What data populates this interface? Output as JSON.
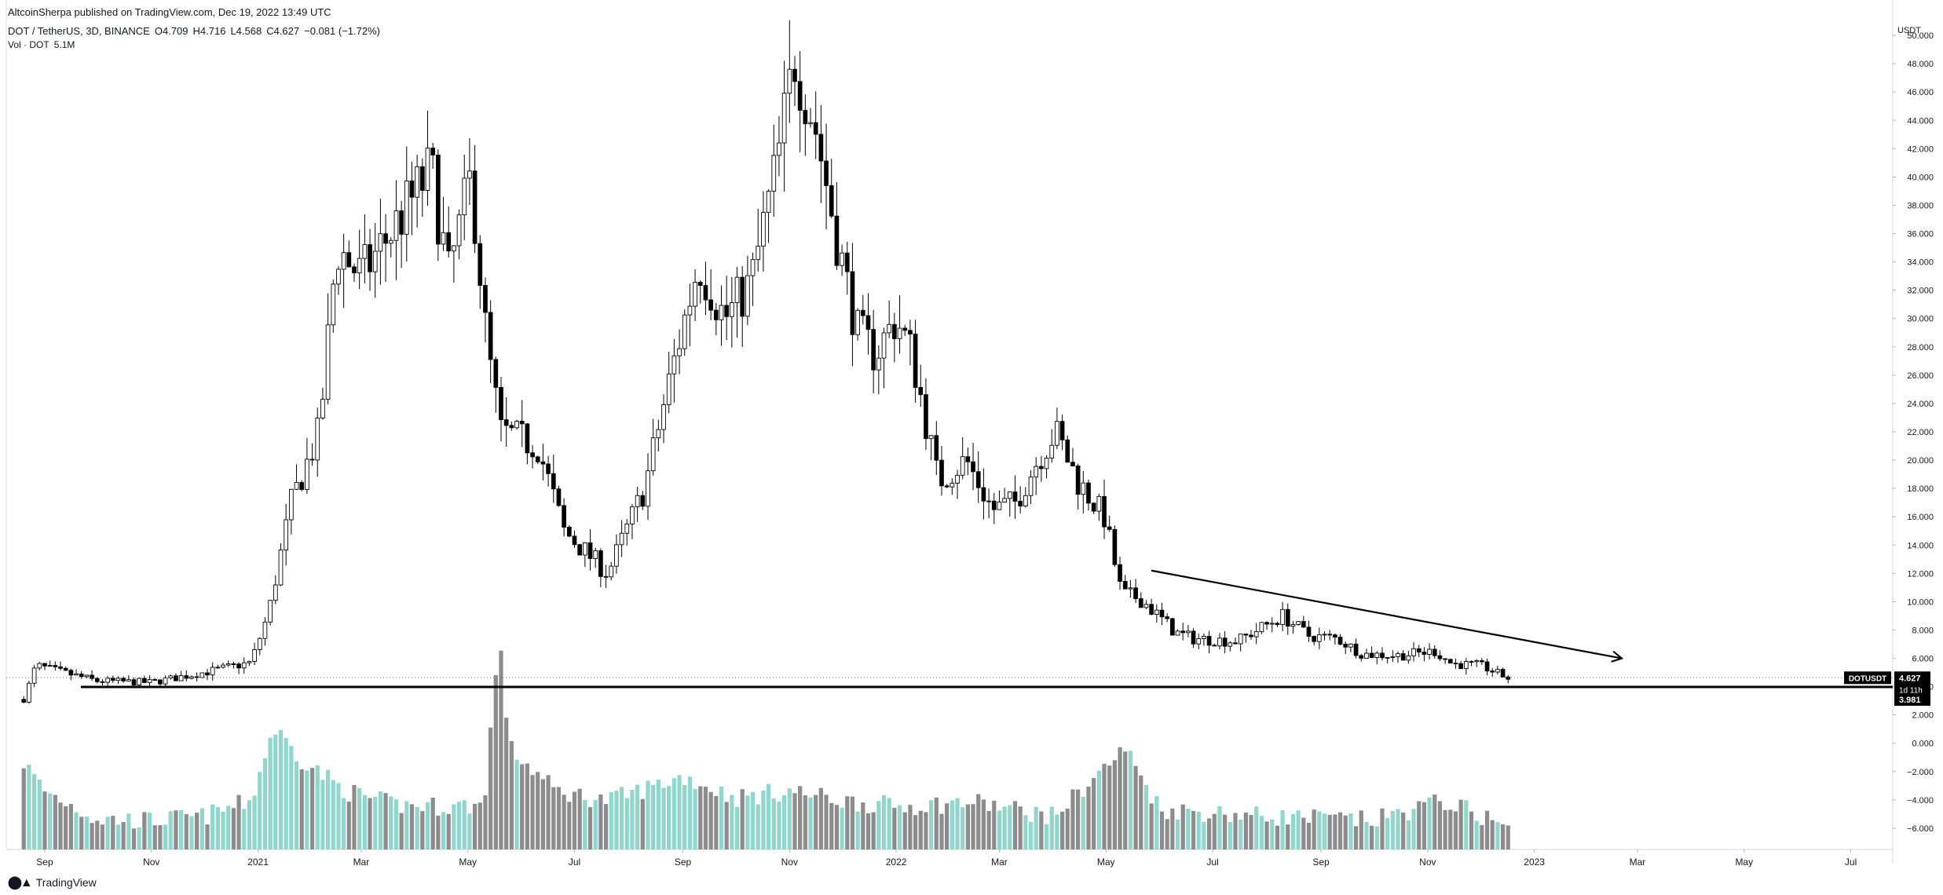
{
  "header": {
    "published": "AltcoinSherpa published on TradingView.com, Dec 19, 2022 13:49 UTC",
    "symbol": "DOT / TetherUS, 3D, BINANCE",
    "ohlc": {
      "o": "O4.709",
      "h": "H4.716",
      "l": "L4.568",
      "c": "C4.627",
      "change": "−0.081 (−1.72%)"
    },
    "volume_label": "Vol · DOT",
    "volume_value": "5.1M"
  },
  "footer": {
    "brand": "TradingView",
    "logo_icon": "tradingview-logo-icon"
  },
  "colors": {
    "up": "#ffffff",
    "down": "#000000",
    "vol_up": "#8fd6cc",
    "vol_down": "#8c8c8c",
    "price_badge": "#000000"
  },
  "chart_data": {
    "type": "candlestick",
    "currency": "USDT",
    "y_ticks": [
      "50.000",
      "48.000",
      "46.000",
      "44.000",
      "42.000",
      "40.000",
      "38.000",
      "36.000",
      "34.000",
      "32.000",
      "30.000",
      "28.000",
      "26.000",
      "24.000",
      "22.000",
      "20.000",
      "18.000",
      "16.000",
      "14.000",
      "12.000",
      "10.000",
      "8.000",
      "6.000",
      "4.000",
      "2.000",
      "0.000",
      "−2.000",
      "−4.000",
      "−6.000"
    ],
    "x_ticks": [
      "Sep",
      "Nov",
      "2021",
      "Mar",
      "May",
      "Jul",
      "Sep",
      "Nov",
      "2022",
      "Mar",
      "May",
      "Jul",
      "Sep",
      "Nov",
      "2023",
      "Mar",
      "May",
      "Jul"
    ],
    "x_tick_values": [
      "2020-09-01",
      "2020-11-01",
      "2021-01-01",
      "2021-03-01",
      "2021-05-01",
      "2021-07-01",
      "2021-09-01",
      "2021-11-01",
      "2022-01-01",
      "2022-03-01",
      "2022-05-01",
      "2022-07-01",
      "2022-09-01",
      "2022-11-01",
      "2023-01-01",
      "2023-03-01",
      "2023-05-01",
      "2023-07-01"
    ],
    "y_range": [
      -7.5,
      51.5
    ],
    "x_range": [
      "2020-08-10",
      "2023-07-25"
    ],
    "price_path": [
      [
        "2020-08-20",
        3.1
      ],
      [
        "2020-08-27",
        5.5
      ],
      [
        "2020-09-05",
        5.2
      ],
      [
        "2020-10-01",
        4.4
      ],
      [
        "2020-11-01",
        4.3
      ],
      [
        "2020-12-01",
        5.0
      ],
      [
        "2020-12-28",
        5.7
      ],
      [
        "2021-01-07",
        9.2
      ],
      [
        "2021-01-20",
        17.0
      ],
      [
        "2021-02-05",
        22.0
      ],
      [
        "2021-02-15",
        35.0
      ],
      [
        "2021-03-01",
        33.0
      ],
      [
        "2021-03-20",
        36.5
      ],
      [
        "2021-04-10",
        40.5
      ],
      [
        "2021-04-20",
        33.0
      ],
      [
        "2021-05-03",
        40.0
      ],
      [
        "2021-05-12",
        28.0
      ],
      [
        "2021-05-20",
        22.0
      ],
      [
        "2021-06-10",
        21.0
      ],
      [
        "2021-06-25",
        15.0
      ],
      [
        "2021-07-20",
        12.0
      ],
      [
        "2021-08-10",
        18.0
      ],
      [
        "2021-08-25",
        26.0
      ],
      [
        "2021-09-10",
        34.0
      ],
      [
        "2021-09-25",
        30.0
      ],
      [
        "2021-10-10",
        32.5
      ],
      [
        "2021-10-25",
        41.0
      ],
      [
        "2021-11-04",
        48.5
      ],
      [
        "2021-11-15",
        44.0
      ],
      [
        "2021-11-30",
        34.5
      ],
      [
        "2021-12-10",
        29.0
      ],
      [
        "2021-12-20",
        27.5
      ],
      [
        "2022-01-01",
        30.0
      ],
      [
        "2022-01-10",
        27.5
      ],
      [
        "2022-01-25",
        18.5
      ],
      [
        "2022-02-10",
        20.0
      ],
      [
        "2022-02-25",
        16.5
      ],
      [
        "2022-03-10",
        17.0
      ],
      [
        "2022-03-25",
        20.5
      ],
      [
        "2022-04-02",
        22.0
      ],
      [
        "2022-04-15",
        18.5
      ],
      [
        "2022-04-30",
        16.0
      ],
      [
        "2022-05-10",
        10.5
      ],
      [
        "2022-05-20",
        10.3
      ],
      [
        "2022-06-10",
        7.8
      ],
      [
        "2022-06-20",
        7.4
      ],
      [
        "2022-07-15",
        7.2
      ],
      [
        "2022-08-10",
        9.0
      ],
      [
        "2022-08-25",
        7.6
      ],
      [
        "2022-09-10",
        7.4
      ],
      [
        "2022-09-25",
        6.3
      ],
      [
        "2022-10-15",
        6.2
      ],
      [
        "2022-11-05",
        6.5
      ],
      [
        "2022-11-15",
        5.6
      ],
      [
        "2022-12-01",
        5.5
      ],
      [
        "2022-12-17",
        4.6
      ]
    ],
    "volume_path": [
      [
        "2020-08-20",
        -1.5
      ],
      [
        "2020-09-01",
        -3.5
      ],
      [
        "2020-10-01",
        -5.5
      ],
      [
        "2020-11-01",
        -5.6
      ],
      [
        "2020-12-01",
        -5.3
      ],
      [
        "2020-12-28",
        -4.2
      ],
      [
        "2021-01-10",
        1.0
      ],
      [
        "2021-01-25",
        -1.2
      ],
      [
        "2021-02-20",
        -3.5
      ],
      [
        "2021-03-20",
        -4.5
      ],
      [
        "2021-04-20",
        -4.6
      ],
      [
        "2021-05-10",
        -4.5
      ],
      [
        "2021-05-19",
        7.3
      ],
      [
        "2021-05-25",
        -0.5
      ],
      [
        "2021-06-20",
        -3.5
      ],
      [
        "2021-07-20",
        -4.2
      ],
      [
        "2021-09-01",
        -2.5
      ],
      [
        "2021-10-01",
        -4.0
      ],
      [
        "2021-11-01",
        -3.5
      ],
      [
        "2021-12-01",
        -4.2
      ],
      [
        "2022-01-01",
        -4.6
      ],
      [
        "2022-02-15",
        -4.3
      ],
      [
        "2022-04-01",
        -5.3
      ],
      [
        "2022-05-12",
        -0.5
      ],
      [
        "2022-06-01",
        -4.8
      ],
      [
        "2022-08-01",
        -5.3
      ],
      [
        "2022-10-01",
        -5.6
      ],
      [
        "2022-11-10",
        -4.2
      ],
      [
        "2022-12-17",
        -6.0
      ]
    ],
    "price_line": {
      "label": "DOTUSDT",
      "value": "4.627",
      "countdown": "1d 11h"
    },
    "support": {
      "value": "3.981"
    },
    "trendline": {
      "from": [
        "2022-05-27",
        12.2
      ],
      "to": [
        "2023-02-20",
        6.0
      ]
    }
  }
}
